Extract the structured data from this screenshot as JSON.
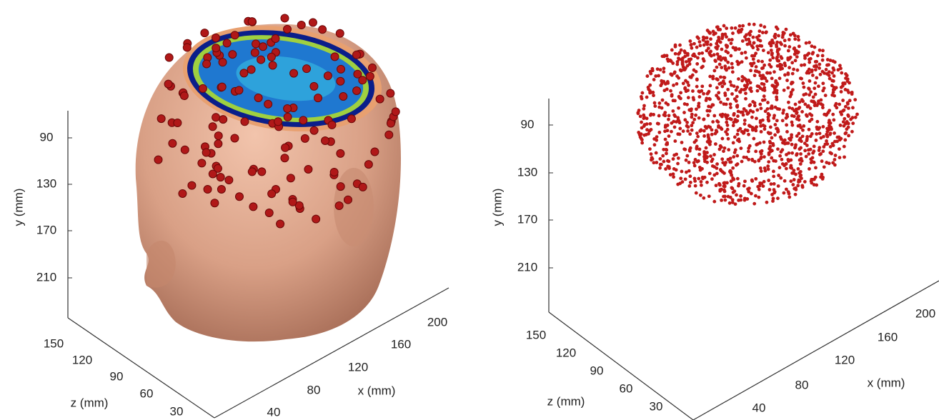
{
  "panels": [
    {
      "y_label": "y (mm)",
      "y_ticks": [
        90,
        130,
        170,
        210
      ],
      "z_label": "z (mm)",
      "z_ticks": [
        150,
        120,
        90,
        60,
        30
      ],
      "x_label": "x (mm)",
      "x_ticks": [
        40,
        80,
        120,
        160,
        200
      ]
    },
    {
      "y_label": "y (mm)",
      "y_ticks": [
        90,
        130,
        170,
        210
      ],
      "z_label": "z (mm)",
      "z_ticks": [
        150,
        120,
        90,
        60,
        30
      ],
      "x_label": "x (mm)",
      "x_ticks": [
        40,
        80,
        120,
        160,
        200
      ]
    }
  ]
}
